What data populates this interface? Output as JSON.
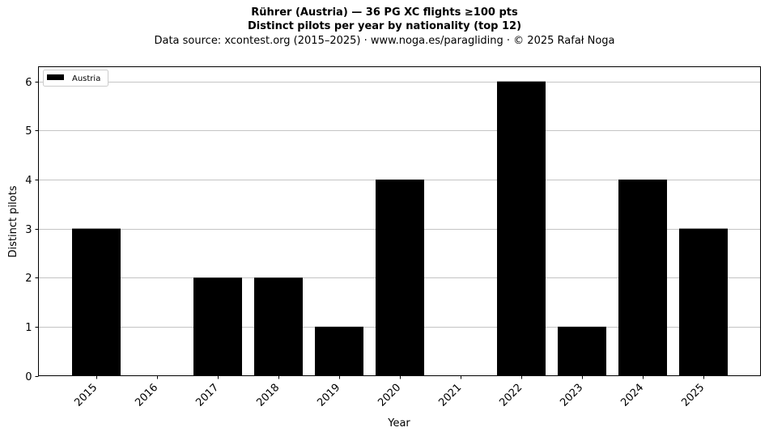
{
  "titles": {
    "line1": "Rührer (Austria)  —  36 PG XC flights ≥100 pts",
    "line2": "Distinct pilots per year by nationality (top 12)",
    "line3": "Data source: xcontest.org (2015–2025)  ·  www.noga.es/paragliding  ·  © 2025 Rafał Noga"
  },
  "chart_data": {
    "type": "bar",
    "title": "Distinct pilots per year by nationality (top 12)",
    "xlabel": "Year",
    "ylabel": "Distinct pilots",
    "categories": [
      "2015",
      "2016",
      "2017",
      "2018",
      "2019",
      "2020",
      "2021",
      "2022",
      "2023",
      "2024",
      "2025"
    ],
    "series": [
      {
        "name": "Austria",
        "values": [
          3,
          0,
          2,
          2,
          1,
          4,
          0,
          6,
          1,
          4,
          3
        ],
        "color": "#000000"
      }
    ],
    "ylim": [
      0,
      6.3
    ],
    "yticks": [
      0,
      1,
      2,
      3,
      4,
      5,
      6
    ],
    "grid": "horizontal",
    "legend_position": "top-left"
  }
}
